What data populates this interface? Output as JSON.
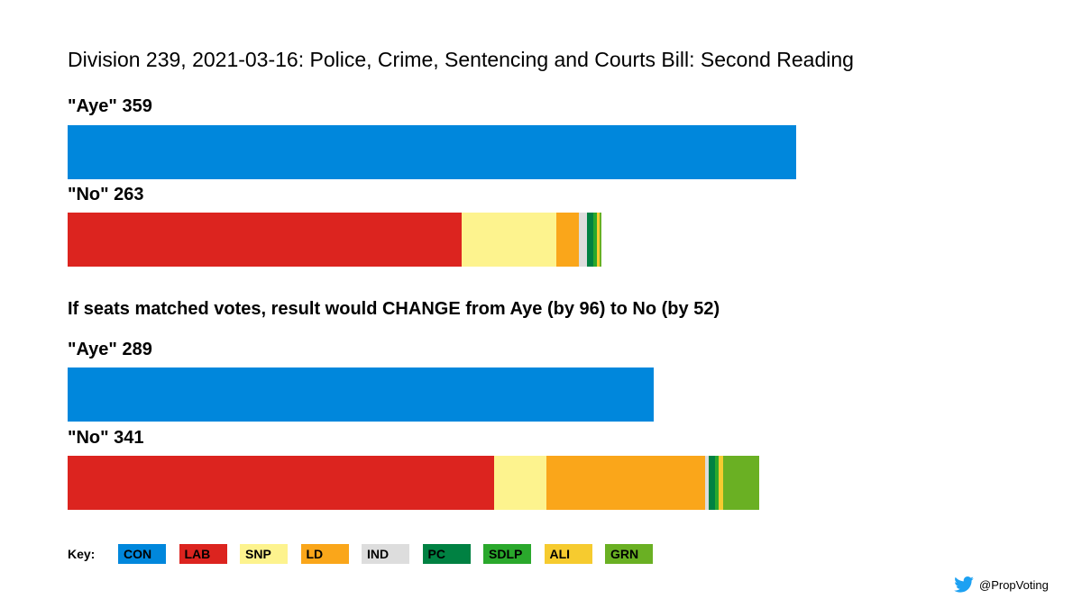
{
  "chart_data": {
    "type": "bar",
    "title": "Division 239, 2021-03-16: Police, Crime, Sentencing and Courts Bill: Second Reading",
    "subtitle": "If seats matched votes, result would CHANGE from Aye (by 96) to No (by 52)",
    "parties": [
      "CON",
      "LAB",
      "SNP",
      "LD",
      "IND",
      "PC",
      "SDLP",
      "ALI",
      "GRN"
    ],
    "colors": {
      "CON": "#0087dc",
      "LAB": "#dc241f",
      "SNP": "#fdf38e",
      "LD": "#faa61a",
      "IND": "#dddddd",
      "PC": "#008142",
      "SDLP": "#2aa82c",
      "ALI": "#f6cb2f",
      "GRN": "#6ab023"
    },
    "groups": [
      {
        "id": "actual",
        "bars": [
          {
            "id": "aye",
            "label": "\"Aye\" 359",
            "total": 359,
            "segments": [
              {
                "party": "CON",
                "value": 359
              }
            ]
          },
          {
            "id": "no",
            "label": "\"No\" 263",
            "total": 263,
            "segments": [
              {
                "party": "LAB",
                "value": 194
              },
              {
                "party": "SNP",
                "value": 47
              },
              {
                "party": "LD",
                "value": 11
              },
              {
                "party": "IND",
                "value": 4
              },
              {
                "party": "PC",
                "value": 3
              },
              {
                "party": "SDLP",
                "value": 2
              },
              {
                "party": "ALI",
                "value": 1
              },
              {
                "party": "GRN",
                "value": 1
              }
            ]
          }
        ]
      },
      {
        "id": "proportional",
        "bars": [
          {
            "id": "aye",
            "label": "\"Aye\" 289",
            "total": 289,
            "segments": [
              {
                "party": "CON",
                "value": 289
              }
            ]
          },
          {
            "id": "no",
            "label": "\"No\" 341",
            "total": 341,
            "segments": [
              {
                "party": "LAB",
                "value": 210
              },
              {
                "party": "SNP",
                "value": 26
              },
              {
                "party": "LD",
                "value": 78
              },
              {
                "party": "IND",
                "value": 2
              },
              {
                "party": "PC",
                "value": 3
              },
              {
                "party": "SDLP",
                "value": 2
              },
              {
                "party": "ALI",
                "value": 2
              },
              {
                "party": "GRN",
                "value": 18
              }
            ]
          }
        ]
      }
    ]
  },
  "key": {
    "label": "Key:",
    "items": [
      "CON",
      "LAB",
      "SNP",
      "LD",
      "IND",
      "PC",
      "SDLP",
      "ALI",
      "GRN"
    ]
  },
  "credit": {
    "handle": "@PropVoting",
    "icon": "twitter-bird-icon"
  }
}
